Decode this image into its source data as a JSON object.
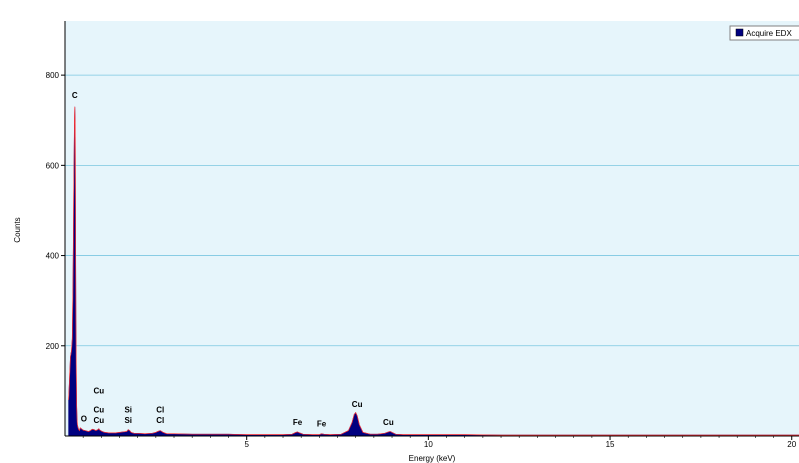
{
  "chart_data": {
    "type": "area",
    "xlabel": "Energy (keV)",
    "ylabel": "Counts",
    "xlim": [
      0,
      20.2
    ],
    "ylim": [
      0,
      920
    ],
    "x_ticks": [
      5,
      10,
      15,
      20
    ],
    "x_tick_labels": [
      "5",
      "10",
      "15",
      "20"
    ],
    "y_ticks": [
      200,
      400,
      600,
      800
    ],
    "y_tick_labels": [
      "200",
      "400",
      "600",
      "800"
    ],
    "grid": "horizontal",
    "legend": {
      "placement": "top-right",
      "entries": [
        "Acquire EDX"
      ]
    },
    "series": [
      {
        "name": "Acquire EDX",
        "color": "#000080",
        "x": [
          0.1,
          0.15,
          0.18,
          0.2,
          0.22,
          0.24,
          0.26,
          0.27,
          0.28,
          0.29,
          0.3,
          0.31,
          0.32,
          0.33,
          0.34,
          0.36,
          0.38,
          0.4,
          0.42,
          0.45,
          0.5,
          0.55,
          0.6,
          0.65,
          0.7,
          0.75,
          0.8,
          0.85,
          0.9,
          0.93,
          0.96,
          1.0,
          1.05,
          1.1,
          1.2,
          1.3,
          1.4,
          1.5,
          1.6,
          1.7,
          1.74,
          1.78,
          1.82,
          1.9,
          2.0,
          2.2,
          2.4,
          2.5,
          2.55,
          2.62,
          2.7,
          2.8,
          3.0,
          3.5,
          4.0,
          4.5,
          5.0,
          5.5,
          6.0,
          6.25,
          6.35,
          6.4,
          6.45,
          6.55,
          6.8,
          7.0,
          7.06,
          7.12,
          7.3,
          7.6,
          7.8,
          7.9,
          7.96,
          8.0,
          8.04,
          8.1,
          8.2,
          8.4,
          8.6,
          8.8,
          8.9,
          8.95,
          9.0,
          9.1,
          9.3,
          10.0,
          11.0,
          12.0,
          13.0,
          14.0,
          15.0,
          16.0,
          17.0,
          18.0,
          19.0,
          20.0,
          20.2
        ],
        "y": [
          80,
          175,
          190,
          215,
          330,
          530,
          700,
          730,
          690,
          480,
          260,
          140,
          70,
          40,
          25,
          18,
          14,
          12,
          18,
          16,
          13,
          12,
          11,
          10,
          12,
          15,
          14,
          12,
          14,
          16,
          13,
          11,
          9,
          8,
          7,
          7,
          7,
          8,
          9,
          10,
          14,
          12,
          8,
          6,
          6,
          5,
          6,
          8,
          10,
          12,
          8,
          5,
          5,
          4,
          4,
          4,
          3,
          3,
          3,
          4,
          8,
          9,
          7,
          4,
          3,
          3,
          5,
          4,
          3,
          4,
          12,
          30,
          48,
          52,
          45,
          25,
          8,
          4,
          4,
          6,
          9,
          10,
          8,
          4,
          3,
          3,
          3,
          2,
          2,
          2,
          2,
          2,
          2,
          2,
          2,
          2,
          2
        ]
      }
    ],
    "peak_labels": [
      {
        "label": "C",
        "x": 0.27,
        "y": 745
      },
      {
        "label": "Cu",
        "x": 0.93,
        "y": 90
      },
      {
        "label": "O",
        "x": 0.52,
        "y": 28
      },
      {
        "label": "Cu",
        "x": 0.93,
        "y": 48
      },
      {
        "label": "Cu",
        "x": 0.93,
        "y": 24
      },
      {
        "label": "Si",
        "x": 1.74,
        "y": 48
      },
      {
        "label": "Si",
        "x": 1.74,
        "y": 24
      },
      {
        "label": "Cl",
        "x": 2.62,
        "y": 48
      },
      {
        "label": "Cl",
        "x": 2.62,
        "y": 24
      },
      {
        "label": "Fe",
        "x": 6.4,
        "y": 20
      },
      {
        "label": "Fe",
        "x": 7.06,
        "y": 17
      },
      {
        "label": "Cu",
        "x": 8.04,
        "y": 60
      },
      {
        "label": "Cu",
        "x": 8.9,
        "y": 20
      }
    ]
  }
}
